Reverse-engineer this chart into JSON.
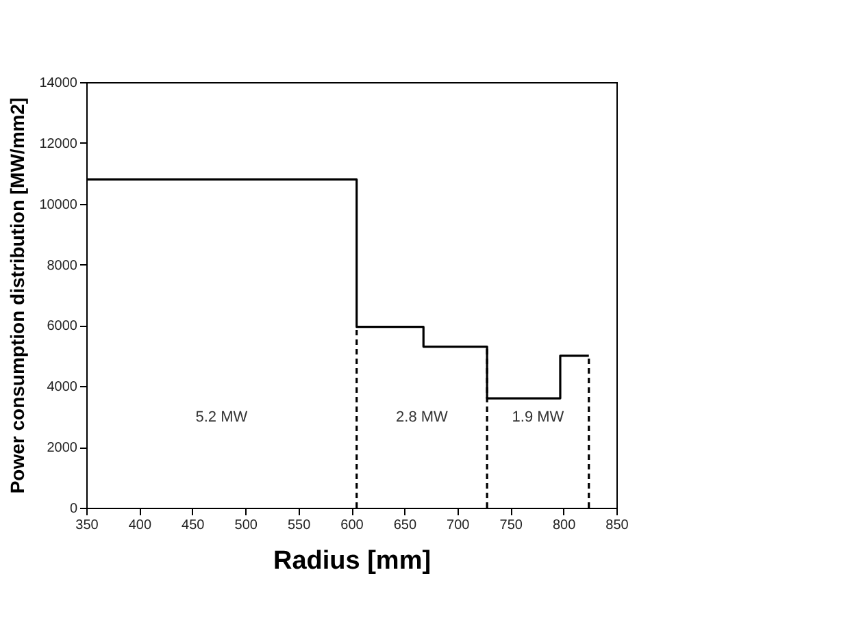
{
  "chart_data": {
    "type": "step",
    "xlabel": "Radius [mm]",
    "ylabel": "Power consumption distribution [MW/mm2]",
    "xlim": [
      350,
      850
    ],
    "xticks": [
      350,
      400,
      450,
      500,
      550,
      600,
      650,
      700,
      750,
      800,
      850
    ],
    "ylim": [
      0,
      14000
    ],
    "yticks": [
      0,
      2000,
      4000,
      6000,
      8000,
      10000,
      12000,
      14000
    ],
    "grid": false,
    "series": [
      {
        "color": "#000000",
        "line_style": "solid",
        "x": [
          350,
          605,
          668,
          728,
          797,
          824
        ],
        "values": [
          10800,
          5950,
          5300,
          3600,
          5000,
          5000
        ]
      },
      {
        "type": "line",
        "color": "#000000",
        "line_style": "dashed",
        "x": [
          605,
          605
        ],
        "values": [
          0,
          5950
        ]
      },
      {
        "type": "line",
        "color": "#000000",
        "line_style": "dashed",
        "x": [
          728,
          728
        ],
        "values": [
          0,
          5300
        ]
      },
      {
        "type": "line",
        "color": "#000000",
        "line_style": "dashed",
        "x": [
          824,
          824
        ],
        "values": [
          0,
          5000
        ]
      }
    ],
    "annotations": [
      "5.2 MW",
      "2.8 MW",
      "1.9 MW"
    ]
  }
}
